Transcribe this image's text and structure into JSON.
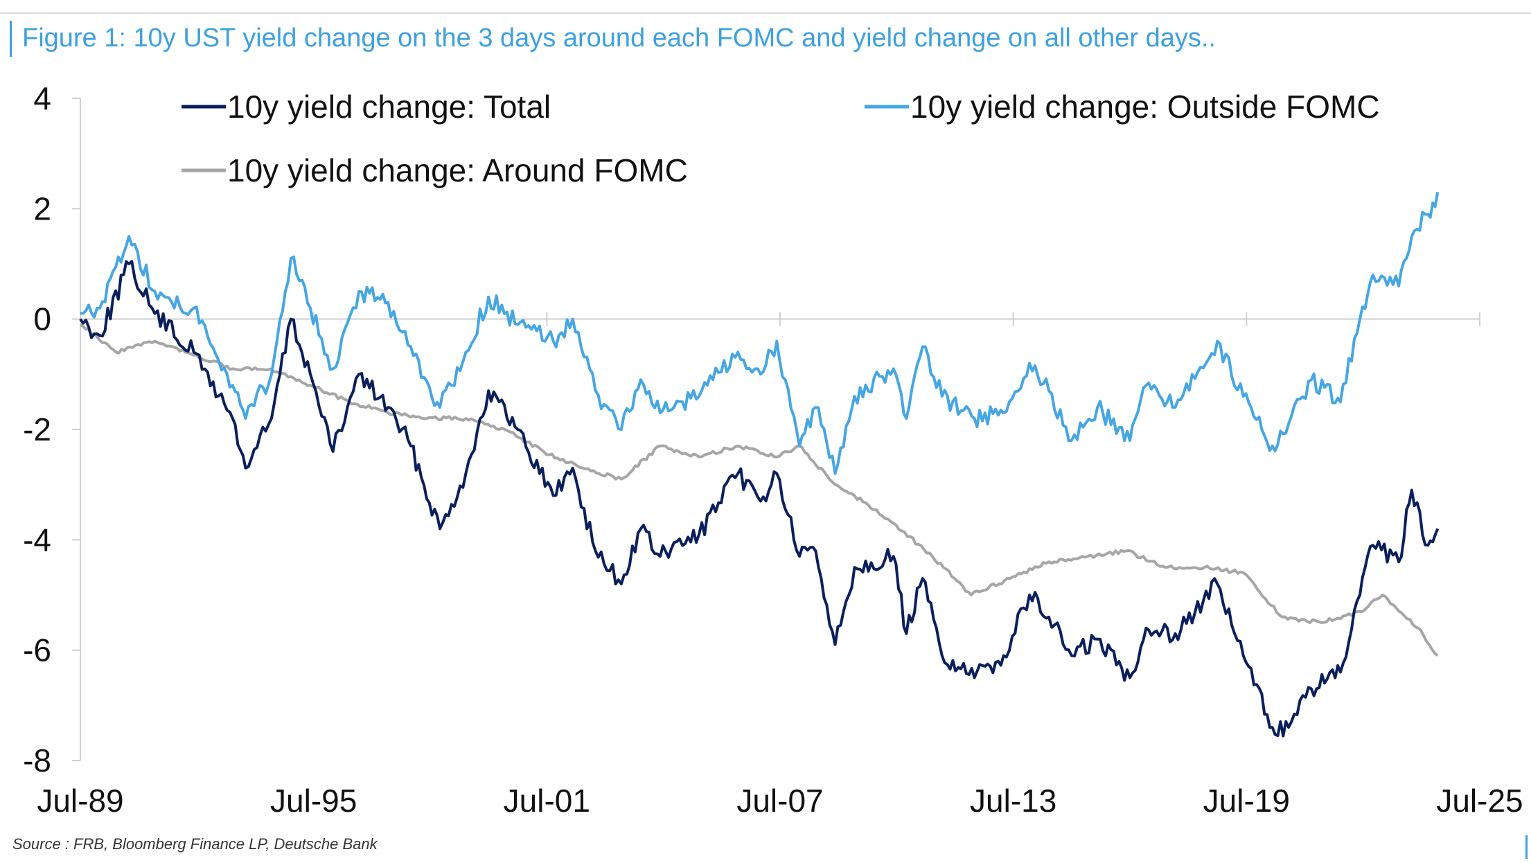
{
  "figure": {
    "title": "Figure 1: 10y UST yield change on the 3 days around each FOMC and yield change on all other days..",
    "source": "Source : FRB, Bloomberg Finance LP, Deutsche Bank"
  },
  "chart_data": {
    "type": "line",
    "title": "Figure 1: 10y UST yield change on the 3 days around each FOMC and yield change on all other days..",
    "xlabel": "",
    "ylabel": "",
    "x_ticks": [
      "Jul-89",
      "Jul-95",
      "Jul-01",
      "Jul-07",
      "Jul-13",
      "Jul-19",
      "Jul-25"
    ],
    "xlim": [
      "1989-07",
      "2025-07"
    ],
    "ylim": [
      -8,
      4
    ],
    "y_ticks": [
      4,
      2,
      0,
      -2,
      -4,
      -6,
      -8
    ],
    "grid": false,
    "legend_placement": "top",
    "series": [
      {
        "name": "10y yield change: Total",
        "color": "#0b1f5c",
        "points": [
          [
            "1989-07",
            0.0
          ],
          [
            "1990-01",
            -0.3
          ],
          [
            "1990-10",
            1.0
          ],
          [
            "1991-06",
            0.1
          ],
          [
            "1992-06",
            -0.6
          ],
          [
            "1993-06",
            -1.8
          ],
          [
            "1993-10",
            -2.7
          ],
          [
            "1994-06",
            -1.8
          ],
          [
            "1994-12",
            0.0
          ],
          [
            "1995-06",
            -1.0
          ],
          [
            "1996-01",
            -2.4
          ],
          [
            "1996-09",
            -1.0
          ],
          [
            "1997-06",
            -1.6
          ],
          [
            "1998-01",
            -2.3
          ],
          [
            "1998-10",
            -3.8
          ],
          [
            "1999-06",
            -2.8
          ],
          [
            "2000-01",
            -1.3
          ],
          [
            "2000-10",
            -2.0
          ],
          [
            "2001-09",
            -3.2
          ],
          [
            "2002-03",
            -2.7
          ],
          [
            "2002-10",
            -4.2
          ],
          [
            "2003-06",
            -4.8
          ],
          [
            "2003-12",
            -3.8
          ],
          [
            "2004-06",
            -4.3
          ],
          [
            "2005-06",
            -3.9
          ],
          [
            "2006-06",
            -2.8
          ],
          [
            "2007-01",
            -3.3
          ],
          [
            "2007-06",
            -2.8
          ],
          [
            "2008-01",
            -4.3
          ],
          [
            "2008-06",
            -4.2
          ],
          [
            "2008-12",
            -5.9
          ],
          [
            "2009-06",
            -4.5
          ],
          [
            "2010-06",
            -4.3
          ],
          [
            "2010-10",
            -5.7
          ],
          [
            "2011-03",
            -4.7
          ],
          [
            "2011-09",
            -6.1
          ],
          [
            "2012-07",
            -6.5
          ],
          [
            "2013-04",
            -6.1
          ],
          [
            "2013-12",
            -5.0
          ],
          [
            "2014-06",
            -5.4
          ],
          [
            "2015-01",
            -6.1
          ],
          [
            "2015-09",
            -5.8
          ],
          [
            "2016-07",
            -6.5
          ],
          [
            "2016-12",
            -5.6
          ],
          [
            "2017-09",
            -5.7
          ],
          [
            "2018-10",
            -4.8
          ],
          [
            "2019-06",
            -6.1
          ],
          [
            "2020-03",
            -7.4
          ],
          [
            "2020-08",
            -7.4
          ],
          [
            "2021-03",
            -6.7
          ],
          [
            "2021-12",
            -6.4
          ],
          [
            "2022-06",
            -5.0
          ],
          [
            "2022-10",
            -4.1
          ],
          [
            "2023-06",
            -4.4
          ],
          [
            "2023-10",
            -3.1
          ],
          [
            "2024-03",
            -4.1
          ],
          [
            "2024-06",
            -3.8
          ]
        ]
      },
      {
        "name": "10y yield change: Outside FOMC",
        "color": "#46a6e2",
        "points": [
          [
            "1989-07",
            0.1
          ],
          [
            "1990-01",
            0.2
          ],
          [
            "1990-10",
            1.5
          ],
          [
            "1991-06",
            0.5
          ],
          [
            "1992-06",
            0.2
          ],
          [
            "1993-06",
            -1.2
          ],
          [
            "1993-10",
            -1.8
          ],
          [
            "1994-06",
            -1.0
          ],
          [
            "1994-12",
            1.1
          ],
          [
            "1995-06",
            0.2
          ],
          [
            "1996-01",
            -0.9
          ],
          [
            "1996-09",
            0.5
          ],
          [
            "1997-06",
            0.3
          ],
          [
            "1998-01",
            -0.5
          ],
          [
            "1998-10",
            -1.6
          ],
          [
            "1999-06",
            -0.6
          ],
          [
            "2000-01",
            0.4
          ],
          [
            "2000-10",
            -0.1
          ],
          [
            "2001-09",
            -0.4
          ],
          [
            "2002-03",
            0.0
          ],
          [
            "2002-10",
            -1.3
          ],
          [
            "2003-06",
            -2.0
          ],
          [
            "2003-12",
            -1.1
          ],
          [
            "2004-06",
            -1.7
          ],
          [
            "2005-06",
            -1.4
          ],
          [
            "2006-06",
            -0.6
          ],
          [
            "2007-01",
            -1.0
          ],
          [
            "2007-06",
            -0.4
          ],
          [
            "2008-01",
            -2.3
          ],
          [
            "2008-06",
            -1.6
          ],
          [
            "2008-12",
            -2.8
          ],
          [
            "2009-06",
            -1.4
          ],
          [
            "2010-06",
            -0.9
          ],
          [
            "2010-10",
            -1.8
          ],
          [
            "2011-03",
            -0.5
          ],
          [
            "2011-09",
            -1.4
          ],
          [
            "2012-07",
            -1.8
          ],
          [
            "2013-04",
            -1.7
          ],
          [
            "2013-12",
            -0.8
          ],
          [
            "2014-06",
            -1.3
          ],
          [
            "2015-01",
            -2.2
          ],
          [
            "2015-09",
            -1.6
          ],
          [
            "2016-07",
            -2.2
          ],
          [
            "2016-12",
            -1.2
          ],
          [
            "2017-09",
            -1.6
          ],
          [
            "2018-10",
            -0.4
          ],
          [
            "2019-06",
            -1.4
          ],
          [
            "2020-03",
            -2.3
          ],
          [
            "2020-08",
            -1.9
          ],
          [
            "2021-03",
            -1.1
          ],
          [
            "2021-12",
            -1.5
          ],
          [
            "2022-06",
            0.0
          ],
          [
            "2022-10",
            0.8
          ],
          [
            "2023-06",
            0.6
          ],
          [
            "2023-10",
            1.5
          ],
          [
            "2024-03",
            1.9
          ],
          [
            "2024-06",
            2.3
          ]
        ]
      },
      {
        "name": "10y yield change: Around FOMC",
        "color": "#a6a6a6",
        "points": [
          [
            "1989-07",
            -0.1
          ],
          [
            "1990-06",
            -0.6
          ],
          [
            "1991-06",
            -0.4
          ],
          [
            "1993-06",
            -0.9
          ],
          [
            "1994-06",
            -0.9
          ],
          [
            "1995-06",
            -1.2
          ],
          [
            "1996-06",
            -1.5
          ],
          [
            "1997-06",
            -1.7
          ],
          [
            "1998-06",
            -1.8
          ],
          [
            "1999-06",
            -1.8
          ],
          [
            "2000-06",
            -2.0
          ],
          [
            "2001-06",
            -2.4
          ],
          [
            "2002-06",
            -2.7
          ],
          [
            "2003-06",
            -2.9
          ],
          [
            "2004-06",
            -2.3
          ],
          [
            "2005-06",
            -2.5
          ],
          [
            "2006-06",
            -2.3
          ],
          [
            "2007-06",
            -2.5
          ],
          [
            "2008-01",
            -2.3
          ],
          [
            "2008-12",
            -3.0
          ],
          [
            "2009-06",
            -3.2
          ],
          [
            "2010-06",
            -3.7
          ],
          [
            "2011-06",
            -4.3
          ],
          [
            "2012-06",
            -5.0
          ],
          [
            "2013-06",
            -4.7
          ],
          [
            "2014-06",
            -4.4
          ],
          [
            "2015-06",
            -4.3
          ],
          [
            "2016-06",
            -4.2
          ],
          [
            "2017-06",
            -4.5
          ],
          [
            "2018-06",
            -4.5
          ],
          [
            "2019-06",
            -4.6
          ],
          [
            "2020-06",
            -5.4
          ],
          [
            "2021-06",
            -5.5
          ],
          [
            "2022-06",
            -5.3
          ],
          [
            "2023-01",
            -5.0
          ],
          [
            "2023-12",
            -5.6
          ],
          [
            "2024-06",
            -6.1
          ]
        ]
      }
    ]
  }
}
